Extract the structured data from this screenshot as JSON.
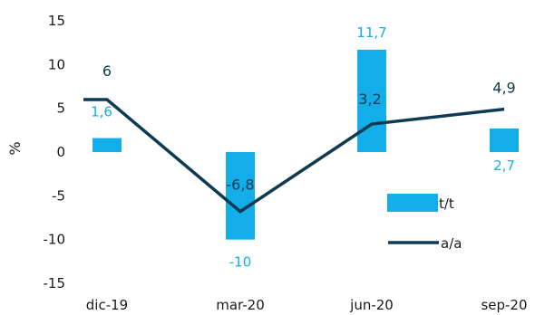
{
  "chart_data": {
    "type": "bar",
    "categories": [
      "dic-19",
      "mar-20",
      "jun-20",
      "sep-20"
    ],
    "ylabel": "%",
    "ylim": [
      -15,
      15
    ],
    "yticks": [
      15,
      10,
      5,
      0,
      -5,
      -10,
      -15
    ],
    "grid": false,
    "legend_position": "bottom-right",
    "series": [
      {
        "name": "t/t",
        "kind": "bar",
        "color": "#13aee9",
        "values": [
          1.6,
          -10,
          11.7,
          2.7
        ],
        "labels": [
          "1,6",
          "-10",
          "11,7",
          "2,7"
        ]
      },
      {
        "name": "a/a",
        "kind": "line",
        "color": "#0e3a53",
        "values": [
          6,
          -6.8,
          3.2,
          4.9
        ],
        "labels": [
          "6",
          "-6,8",
          "3,2",
          "4,9"
        ]
      }
    ]
  }
}
